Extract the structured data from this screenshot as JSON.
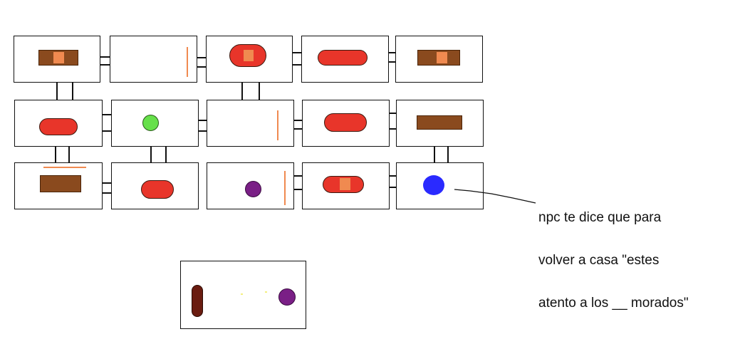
{
  "note": {
    "line1": "npc te dice que para",
    "line2": "volver a casa \"estes",
    "line3": "atento a los __ morados\""
  },
  "colors": {
    "outline": "#111111",
    "pill_red": "#e8352a",
    "crate_brown": "#8a4a1e",
    "patch_orange": "#f08a50",
    "green_orb": "#66e04a",
    "purple_orb": "#7a1f86",
    "blue_orb": "#2a2aff",
    "dark_pill": "#6a1c10"
  },
  "grid": {
    "rows": 3,
    "cols": 5,
    "rooms": [
      {
        "row": 1,
        "col": 1,
        "contents": [
          "brown-crate",
          "orange-patch"
        ]
      },
      {
        "row": 1,
        "col": 2,
        "contents": [
          "orange-stick"
        ]
      },
      {
        "row": 1,
        "col": 3,
        "contents": [
          "red-pill",
          "orange-patch"
        ]
      },
      {
        "row": 1,
        "col": 4,
        "contents": [
          "red-pill"
        ]
      },
      {
        "row": 1,
        "col": 5,
        "contents": [
          "brown-crate",
          "orange-patch"
        ]
      },
      {
        "row": 2,
        "col": 1,
        "contents": [
          "red-pill"
        ]
      },
      {
        "row": 2,
        "col": 2,
        "contents": [
          "green-orb"
        ]
      },
      {
        "row": 2,
        "col": 3,
        "contents": [
          "orange-stick"
        ]
      },
      {
        "row": 2,
        "col": 4,
        "contents": [
          "red-pill"
        ]
      },
      {
        "row": 2,
        "col": 5,
        "contents": [
          "brown-crate"
        ]
      },
      {
        "row": 3,
        "col": 1,
        "contents": [
          "brown-crate",
          "orange-stick"
        ]
      },
      {
        "row": 3,
        "col": 2,
        "contents": [
          "red-pill"
        ]
      },
      {
        "row": 3,
        "col": 3,
        "contents": [
          "purple-orb",
          "orange-stick"
        ]
      },
      {
        "row": 3,
        "col": 4,
        "contents": [
          "red-pill",
          "orange-patch"
        ]
      },
      {
        "row": 3,
        "col": 5,
        "contents": [
          "blue-orb"
        ]
      }
    ]
  },
  "separate_room": {
    "contents": [
      "dark-red-pill",
      "purple-orb"
    ]
  }
}
